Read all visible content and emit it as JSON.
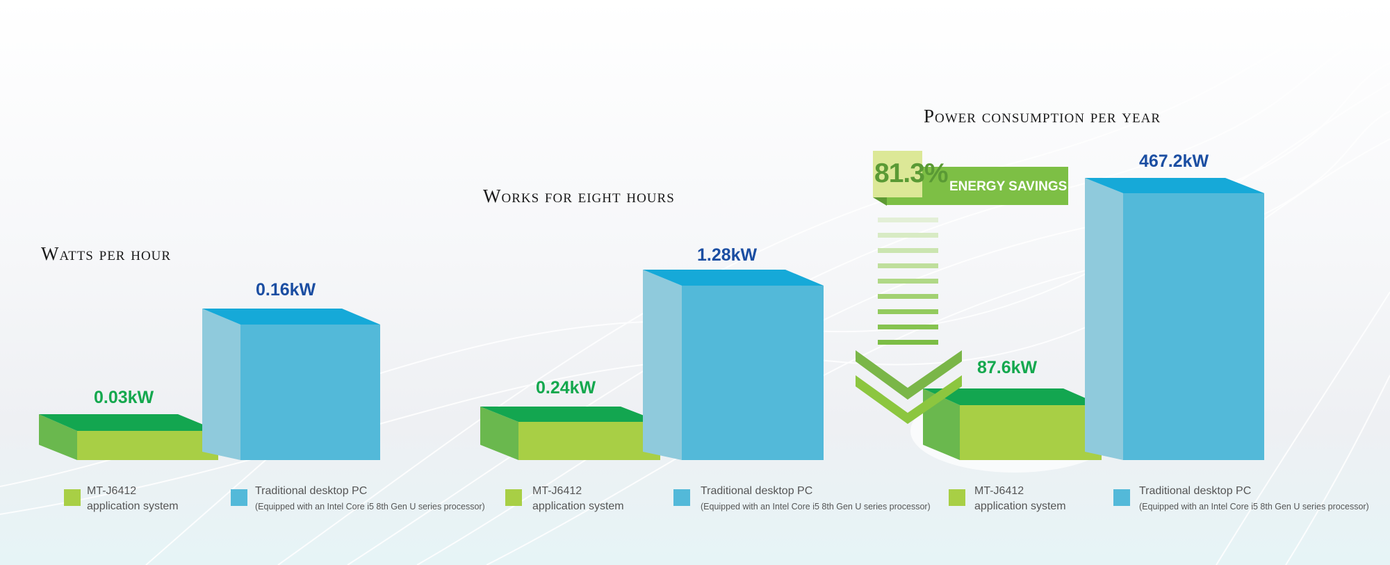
{
  "colors": {
    "green_front": "#a8cf45",
    "green_top": "#13a650",
    "green_side": "#6ab84e",
    "blue_front": "#53b9d9",
    "blue_top": "#16a9d8",
    "blue_side": "#8fcadc",
    "value_blue": "#1b4ea2",
    "value_green": "#14a84e"
  },
  "badge": {
    "percent": "81.3%",
    "label": "ENERGY SAVINGS"
  },
  "chart_data": [
    {
      "type": "bar",
      "title": "Watts per hour",
      "categories": [
        "MT-J6412 application system",
        "Traditional desktop PC"
      ],
      "values": [
        0.03,
        0.16
      ],
      "labels": [
        "0.03kW",
        "0.16kW"
      ],
      "unit": "kW"
    },
    {
      "type": "bar",
      "title": "Works for eight hours",
      "categories": [
        "MT-J6412 application system",
        "Traditional desktop PC"
      ],
      "values": [
        0.24,
        1.28
      ],
      "labels": [
        "0.24kW",
        "1.28kW"
      ],
      "unit": "kW"
    },
    {
      "type": "bar",
      "title": "Power consumption per year",
      "categories": [
        "MT-J6412 application system",
        "Traditional desktop PC"
      ],
      "values": [
        87.6,
        467.2
      ],
      "labels": [
        "87.6kW",
        "467.2kW"
      ],
      "unit": "kW"
    }
  ],
  "legend": {
    "mt_line1": "MT-J6412",
    "mt_line2": "application system",
    "pc_line1": "Traditional desktop PC",
    "pc_line2": "(Equipped with an Intel Core i5 8th Gen U series processor)"
  }
}
